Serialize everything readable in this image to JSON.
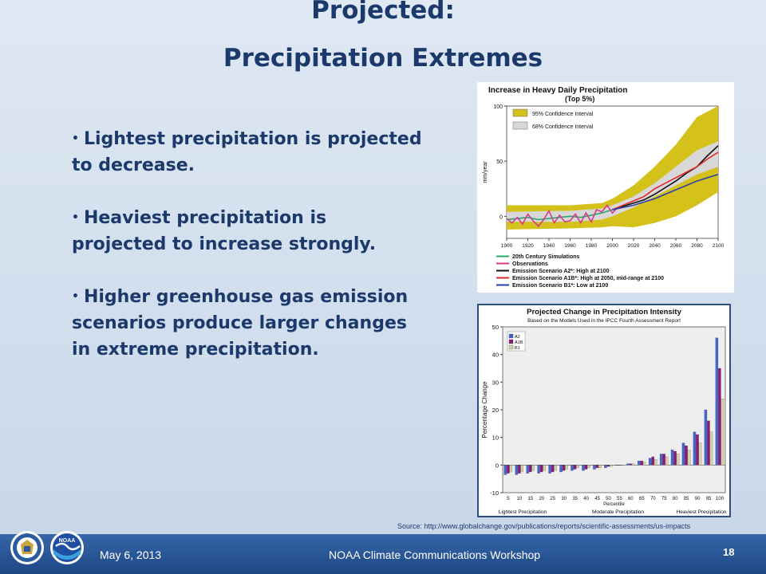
{
  "slide": {
    "title_line1": "Projected:",
    "title_line2": "Precipitation Extremes",
    "bullets": [
      "Lightest precipitation is projected to decrease.",
      "Heaviest precipitation is projected to increase strongly.",
      "Higher greenhouse gas emission scenarios produce larger changes in extreme precipitation."
    ],
    "source": "Source: http://www.globalchange.gov/publications/reports/scientific-assessments/us-impacts",
    "footer": {
      "date": "May 6, 2013",
      "event": "NOAA Climate Communications Workshop",
      "slide_number": "18"
    },
    "logos": [
      {
        "icon": "doc-seal-icon",
        "text": ""
      },
      {
        "icon": "noaa-logo-icon",
        "text": "NOAA"
      }
    ],
    "colors": {
      "title": "#1b3a6b",
      "footer": "#2a5596"
    }
  },
  "chart_data": [
    {
      "type": "line",
      "title": "Increase in Heavy Daily Precipitation",
      "subtitle": "(Top 5%)",
      "ylabel": "mm/year",
      "ylim": [
        -20,
        100
      ],
      "xlim": [
        1900,
        2100
      ],
      "yticks": [
        0,
        50,
        100
      ],
      "xticks": [
        1900,
        1920,
        1940,
        1960,
        1980,
        2000,
        2020,
        2040,
        2060,
        2080,
        2100
      ],
      "bands": [
        {
          "name": "95% Confidence Interval",
          "color": "#d4c11a",
          "x": [
            1900,
            1960,
            1990,
            2000,
            2020,
            2040,
            2060,
            2080,
            2100
          ],
          "lower": [
            -12,
            -11,
            -10,
            -9,
            -10,
            -6,
            0,
            10,
            22
          ],
          "upper": [
            10,
            10,
            12,
            16,
            28,
            45,
            65,
            90,
            100
          ]
        },
        {
          "name": "68% Confidence Interval",
          "color": "#d8d8d8",
          "x": [
            1900,
            1960,
            1990,
            2000,
            2020,
            2040,
            2060,
            2080,
            2100
          ],
          "lower": [
            -5,
            -5,
            -3,
            0,
            8,
            18,
            28,
            38,
            45
          ],
          "upper": [
            4,
            5,
            7,
            10,
            18,
            30,
            45,
            60,
            68
          ]
        }
      ],
      "series": [
        {
          "name": "20th Century Simulations",
          "color": "#2aa86b",
          "x": [
            1900,
            1910,
            1920,
            1930,
            1940,
            1950,
            1960,
            1970,
            1980,
            1990,
            2000
          ],
          "y": [
            -3,
            -2,
            -1,
            -3,
            -2,
            -1,
            0,
            -1,
            1,
            3,
            6
          ]
        },
        {
          "name": "Observations",
          "color": "#d63a8f",
          "x": [
            1900,
            1905,
            1910,
            1915,
            1920,
            1925,
            1930,
            1935,
            1940,
            1945,
            1950,
            1955,
            1960,
            1965,
            1970,
            1975,
            1980,
            1985,
            1990,
            1995,
            2000,
            2005
          ],
          "y": [
            -2,
            -6,
            -1,
            -7,
            2,
            -4,
            -9,
            -3,
            5,
            -6,
            1,
            -5,
            -4,
            2,
            -6,
            3,
            -5,
            6,
            4,
            10,
            3,
            8
          ]
        },
        {
          "name": "Emission Scenario A2*: High at 2100",
          "color": "#111111",
          "x": [
            2000,
            2010,
            2020,
            2030,
            2040,
            2050,
            2060,
            2070,
            2080,
            2090,
            2100
          ],
          "y": [
            6,
            9,
            12,
            15,
            20,
            26,
            32,
            39,
            45,
            55,
            64
          ]
        },
        {
          "name": "Emission Scenario A1B*: High at 2050, mid-range at 2100",
          "color": "#e0292b",
          "x": [
            2000,
            2010,
            2020,
            2030,
            2040,
            2050,
            2060,
            2070,
            2080,
            2090,
            2100
          ],
          "y": [
            6,
            10,
            14,
            18,
            25,
            30,
            35,
            40,
            45,
            52,
            58
          ]
        },
        {
          "name": "Emission Scenario B1*: Low at 2100",
          "color": "#2c3fa6",
          "x": [
            2000,
            2010,
            2020,
            2030,
            2040,
            2050,
            2060,
            2070,
            2080,
            2090,
            2100
          ],
          "y": [
            6,
            8,
            10,
            13,
            16,
            20,
            24,
            28,
            32,
            35,
            38
          ]
        }
      ]
    },
    {
      "type": "bar",
      "title": "Projected Change in Precipitation Intensity",
      "subtitle": "Based on the Models Used in the IPCC Fourth Assessment Report",
      "xlabel": "Percentile",
      "ylabel": "Percentage Change",
      "ylim": [
        -10,
        50
      ],
      "yticks": [
        -10,
        0,
        10,
        20,
        30,
        40,
        50
      ],
      "categories": [
        "5",
        "10",
        "15",
        "20",
        "25",
        "30",
        "35",
        "40",
        "45",
        "50",
        "55",
        "60",
        "65",
        "70",
        "75",
        "80",
        "85",
        "90",
        "95",
        "100"
      ],
      "group_labels": [
        "Lightest Precipitation",
        "Moderate Precipitation",
        "Heaviest Precipitation"
      ],
      "series": [
        {
          "name": "A2",
          "color": "#4565d0",
          "values": [
            -3.5,
            -3.5,
            -3,
            -3,
            -3,
            -2.5,
            -2,
            -2,
            -1.5,
            -1,
            0,
            0.5,
            1.5,
            2.5,
            4,
            5.5,
            8,
            12,
            20,
            46
          ]
        },
        {
          "name": "A1B",
          "color": "#8a1a78",
          "values": [
            -3,
            -3,
            -2.5,
            -2.5,
            -2.5,
            -2,
            -1.5,
            -1.5,
            -1,
            -0.5,
            0,
            0.5,
            1.5,
            3,
            4,
            5,
            7,
            11,
            16,
            35
          ]
        },
        {
          "name": "B1",
          "color": "#d9cfaa",
          "values": [
            -2.5,
            -2.5,
            -2,
            -2,
            -2,
            -1.5,
            -1,
            -1,
            -1,
            -0.5,
            0,
            0.5,
            1,
            2,
            3,
            4,
            5.5,
            8,
            12,
            24
          ]
        }
      ]
    }
  ]
}
